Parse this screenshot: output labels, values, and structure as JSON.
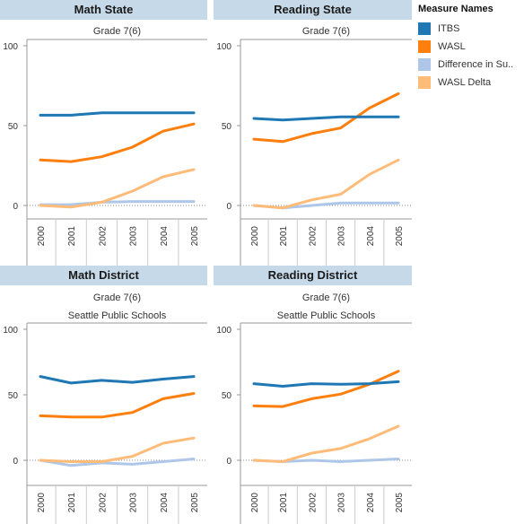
{
  "legend": {
    "title": "Measure Names",
    "items": [
      {
        "label": "ITBS",
        "color": "#1f77b4"
      },
      {
        "label": "WASL",
        "color": "#ff7f0e"
      },
      {
        "label": "Difference in Su..",
        "color": "#aec7e8"
      },
      {
        "label": "WASL Delta",
        "color": "#ffbb78"
      }
    ]
  },
  "chart_data": [
    {
      "type": "line",
      "title": "Math State",
      "subtitle": "Grade 7(6)",
      "subtitle2": "",
      "x": [
        "2000",
        "2001",
        "2002",
        "2003",
        "2004",
        "2005"
      ],
      "ylim": [
        -10,
        105
      ],
      "yticks": [
        0,
        50,
        100
      ],
      "series": [
        {
          "name": "ITBS",
          "values": [
            56.5,
            56.5,
            58,
            58,
            58,
            58
          ]
        },
        {
          "name": "WASL",
          "values": [
            28.5,
            27.5,
            30.5,
            36.5,
            46.5,
            51
          ]
        },
        {
          "name": "Difference in Su..",
          "values": [
            0.5,
            0.5,
            2,
            2.5,
            2.5,
            2.5
          ]
        },
        {
          "name": "WASL Delta",
          "values": [
            0,
            -1,
            2,
            9,
            18,
            22.5
          ]
        }
      ]
    },
    {
      "type": "line",
      "title": "Reading State",
      "subtitle": "Grade 7(6)",
      "subtitle2": "",
      "x": [
        "2000",
        "2001",
        "2002",
        "2003",
        "2004",
        "2005"
      ],
      "ylim": [
        -10,
        105
      ],
      "yticks": [
        0,
        50,
        100
      ],
      "series": [
        {
          "name": "ITBS",
          "values": [
            54.5,
            53.5,
            54.5,
            55.5,
            55.5,
            55.5
          ]
        },
        {
          "name": "WASL",
          "values": [
            41.5,
            40,
            45,
            48.5,
            61,
            70
          ]
        },
        {
          "name": "Difference in Su..",
          "values": [
            0,
            -1.5,
            0,
            1.5,
            1.5,
            1.5
          ]
        },
        {
          "name": "WASL Delta",
          "values": [
            0,
            -1.5,
            3.5,
            7,
            19.5,
            28.5
          ]
        }
      ]
    },
    {
      "type": "line",
      "title": "Math District",
      "subtitle": "Grade 7(6)",
      "subtitle2": "Seattle Public Schools",
      "x": [
        "2000",
        "2001",
        "2002",
        "2003",
        "2004",
        "2005"
      ],
      "ylim": [
        -20,
        105
      ],
      "yticks": [
        0,
        50,
        100
      ],
      "series": [
        {
          "name": "ITBS",
          "values": [
            64,
            59,
            61,
            59.5,
            62,
            64
          ]
        },
        {
          "name": "WASL",
          "values": [
            34,
            33,
            33,
            36.5,
            47,
            51
          ]
        },
        {
          "name": "Difference in Su..",
          "values": [
            0,
            -4,
            -2,
            -3,
            -1,
            1
          ]
        },
        {
          "name": "WASL Delta",
          "values": [
            0,
            -1,
            -1,
            3,
            13,
            17
          ]
        }
      ]
    },
    {
      "type": "line",
      "title": "Reading District",
      "subtitle": "Grade 7(6)",
      "subtitle2": "Seattle Public Schools",
      "x": [
        "2000",
        "2001",
        "2002",
        "2003",
        "2004",
        "2005"
      ],
      "ylim": [
        -20,
        105
      ],
      "yticks": [
        0,
        50,
        100
      ],
      "series": [
        {
          "name": "ITBS",
          "values": [
            58.5,
            56.5,
            58.5,
            58,
            58.5,
            60
          ]
        },
        {
          "name": "WASL",
          "values": [
            41.5,
            41,
            47,
            50.5,
            58,
            68
          ]
        },
        {
          "name": "Difference in Su..",
          "values": [
            0,
            -1,
            0,
            -1,
            0,
            1
          ]
        },
        {
          "name": "WASL Delta",
          "values": [
            0,
            -1,
            5.5,
            9,
            16.5,
            26
          ]
        }
      ]
    }
  ]
}
